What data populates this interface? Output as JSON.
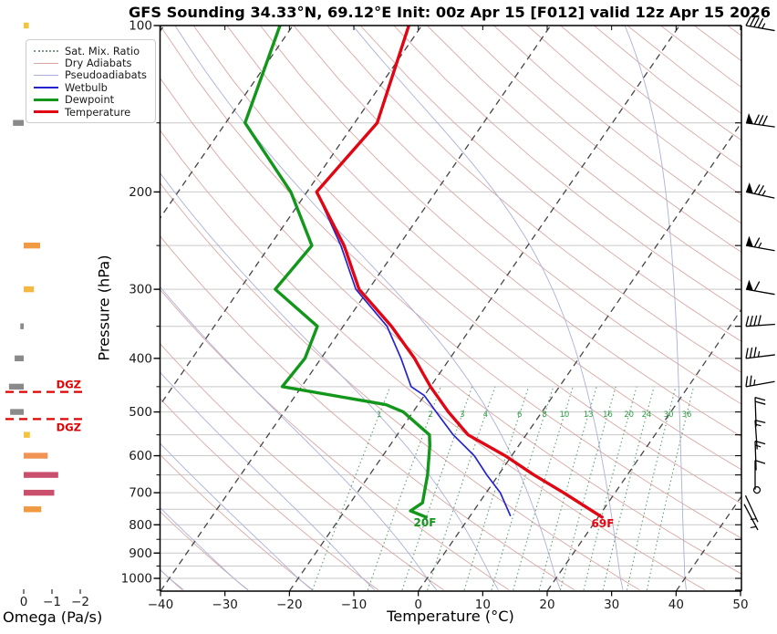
{
  "title": "GFS Sounding 34.33°N, 69.12°E Init: 00z Apr 15 [F012] valid 12z Apr 15 2026",
  "axes": {
    "pressure_label": "Pressure (hPa)",
    "temperature_label": "Temperature (°C)",
    "omega_label": "Omega (Pa/s)",
    "pressure_ticks": [
      100,
      200,
      300,
      400,
      500,
      600,
      700,
      800,
      900,
      1000
    ],
    "pressure_minor_step_hpa": 50,
    "temperature_ticks": [
      -40,
      -30,
      -20,
      -10,
      0,
      10,
      20,
      30,
      40,
      50
    ],
    "omega_ticks": [
      0,
      -1,
      -2
    ]
  },
  "legend": {
    "items": [
      {
        "label": "Sat. Mix. Ratio",
        "color": "#7d9b85",
        "style": "dotted",
        "width": 2
      },
      {
        "label": "Dry Adiabats",
        "color": "#d9a8a4",
        "style": "solid",
        "width": 1
      },
      {
        "label": "Pseudoadiabats",
        "color": "#aab1d8",
        "style": "solid",
        "width": 1
      },
      {
        "label": "Wetbulb",
        "color": "#2424cf",
        "style": "solid",
        "width": 2
      },
      {
        "label": "Dewpoint",
        "color": "#12971b",
        "style": "solid",
        "width": 3
      },
      {
        "label": "Temperature",
        "color": "#e10613",
        "style": "solid",
        "width": 3
      }
    ]
  },
  "annotations": {
    "dgz_label": "DGZ",
    "surface_dewpoint_label": "20F",
    "surface_temperature_label": "69F"
  },
  "colors": {
    "temperature": "#e10613",
    "dewpoint": "#12971b",
    "wetbulb": "#2424cf",
    "dry_adiabat": "#d9a8a4",
    "pseudoadiabat": "#aab1d8",
    "mixing_ratio_line": "#5f9f72",
    "mixing_ratio_label": "#2f9e44",
    "isotherm": "#454545",
    "gridline": "#c9c9c9",
    "dgz": "#e10000",
    "omega_positive": "#8a8a8a",
    "omega_weak": "#f2c33c",
    "omega_moderate": "#f09a44",
    "omega_strong": "#c94f6d"
  },
  "chart_data": {
    "type": "skew-t-log-p-sounding",
    "pressure_range_hpa": [
      100,
      1050
    ],
    "temperature_axis_range_c": [
      -40,
      50
    ],
    "isotherms_c": {
      "start": -120,
      "end": 40,
      "step": 20
    },
    "dry_adiabats_c": {
      "start": -40,
      "end": 240,
      "step": 10
    },
    "pseudoadiabats_c": {
      "start": -60,
      "end": 50,
      "step": 10
    },
    "mixing_ratio_g_kg": [
      1,
      2,
      3,
      4,
      6,
      8,
      10,
      13,
      16,
      20,
      24,
      30,
      36
    ],
    "mixing_ratio_label_pressure_hpa": 505,
    "dgz_lines_hpa": [
      460,
      515
    ],
    "temperature_profile": {
      "pressure_hpa": [
        100,
        150,
        200,
        250,
        300,
        350,
        400,
        450,
        500,
        550,
        600,
        650,
        700,
        775
      ],
      "temp_c": [
        -62,
        -56.5,
        -58.5,
        -48.5,
        -41.5,
        -32.5,
        -25.5,
        -20,
        -14.5,
        -9,
        -1,
        5.5,
        12,
        20.6
      ]
    },
    "dewpoint_profile": {
      "pressure_hpa": [
        100,
        150,
        200,
        250,
        300,
        350,
        400,
        450,
        485,
        500,
        550,
        575,
        650,
        730,
        755,
        775
      ],
      "temp_c": [
        -82,
        -77,
        -62.5,
        -53.5,
        -54.5,
        -44,
        -42.5,
        -43,
        -25,
        -21.5,
        -15,
        -13.8,
        -11,
        -8.8,
        -9.8,
        -6.7
      ]
    },
    "wetbulb_profile": {
      "pressure_hpa": [
        100,
        150,
        200,
        250,
        300,
        350,
        400,
        450,
        467,
        500,
        550,
        600,
        650,
        700,
        770
      ],
      "temp_c": [
        -62,
        -56.5,
        -58.5,
        -49,
        -42,
        -33.2,
        -27.6,
        -23,
        -20,
        -16.4,
        -11.3,
        -5.8,
        -1.8,
        2.2,
        6.2
      ]
    },
    "wind_barbs": [
      {
        "pressure_hpa": 100,
        "speed_kt": 45,
        "style": "h",
        "rot": 10
      },
      {
        "pressure_hpa": 150,
        "speed_kt": 80,
        "style": "h",
        "rot": 8
      },
      {
        "pressure_hpa": 200,
        "speed_kt": 75,
        "style": "h",
        "rot": 12
      },
      {
        "pressure_hpa": 250,
        "speed_kt": 65,
        "style": "h",
        "rot": 10
      },
      {
        "pressure_hpa": 300,
        "speed_kt": 60,
        "style": "h",
        "rot": 10
      },
      {
        "pressure_hpa": 350,
        "speed_kt": 40,
        "style": "h",
        "rot": -4
      },
      {
        "pressure_hpa": 400,
        "speed_kt": 35,
        "style": "h",
        "rot": -7
      },
      {
        "pressure_hpa": 450,
        "speed_kt": 25,
        "style": "h",
        "rot": -10
      },
      {
        "pressure_hpa": 500,
        "speed_kt": 20,
        "style": "v",
        "rot": 88
      },
      {
        "pressure_hpa": 550,
        "speed_kt": 15,
        "style": "v",
        "rot": 86
      },
      {
        "pressure_hpa": 600,
        "speed_kt": 15,
        "style": "v",
        "rot": 88
      },
      {
        "pressure_hpa": 650,
        "speed_kt": 10,
        "style": "v",
        "rot": 90
      },
      {
        "pressure_hpa": 700,
        "speed_kt": 0,
        "style": "calm",
        "rot": 0
      },
      {
        "pressure_hpa": 750,
        "speed_kt": 5,
        "style": "l",
        "rot": -115
      },
      {
        "pressure_hpa": 775,
        "speed_kt": 5,
        "style": "l",
        "rot": -118
      }
    ],
    "omega_bars": [
      {
        "pressure_hpa": 100,
        "omega_pa_s": -0.18,
        "color": "#f2c33c"
      },
      {
        "pressure_hpa": 150,
        "omega_pa_s": 0.38,
        "color": "#8a8a8a"
      },
      {
        "pressure_hpa": 250,
        "omega_pa_s": -0.58,
        "color": "#f09a44"
      },
      {
        "pressure_hpa": 300,
        "omega_pa_s": -0.36,
        "color": "#f4b942"
      },
      {
        "pressure_hpa": 350,
        "omega_pa_s": 0.12,
        "color": "#8a8a8a"
      },
      {
        "pressure_hpa": 400,
        "omega_pa_s": 0.32,
        "color": "#8a8a8a"
      },
      {
        "pressure_hpa": 450,
        "omega_pa_s": 0.52,
        "color": "#8a8a8a"
      },
      {
        "pressure_hpa": 500,
        "omega_pa_s": 0.48,
        "color": "#8a8a8a"
      },
      {
        "pressure_hpa": 550,
        "omega_pa_s": -0.22,
        "color": "#f2c33c"
      },
      {
        "pressure_hpa": 600,
        "omega_pa_s": -0.85,
        "color": "#ef9455"
      },
      {
        "pressure_hpa": 650,
        "omega_pa_s": -1.22,
        "color": "#c94f6d"
      },
      {
        "pressure_hpa": 700,
        "omega_pa_s": -1.08,
        "color": "#c94f6d"
      },
      {
        "pressure_hpa": 750,
        "omega_pa_s": -0.62,
        "color": "#f09a44"
      }
    ]
  }
}
